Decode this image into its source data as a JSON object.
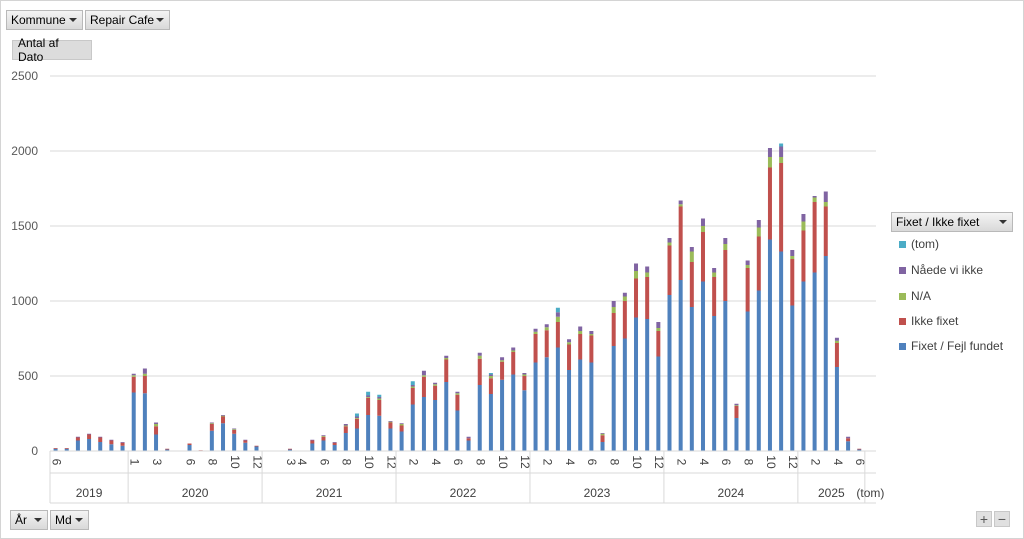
{
  "filters": {
    "kommune": "Kommune",
    "repair_cafe": "Repair Cafe"
  },
  "value_field": "Antal af Dato",
  "legend_field": "Fixet / Ikke fixet",
  "axis_fields": {
    "year": "År",
    "month": "Md"
  },
  "zoom": {
    "plus": "+",
    "minus": "−"
  },
  "colors": {
    "Fixet / Fejl fundet": "#4f81bd",
    "Ikke fixet": "#c0504d",
    "N/A": "#9bbb59",
    "Nåede vi ikke": "#8064a2",
    "(tom)": "#4bacc6"
  },
  "chart_data": {
    "type": "bar",
    "stacked": true,
    "ylim": [
      0,
      2500
    ],
    "yticks": [
      "0",
      "500",
      "1000",
      "1500",
      "2000",
      "2500"
    ],
    "grid": true,
    "legend_position": "right",
    "series_order": [
      "Fixet / Fejl fundet",
      "Ikke fixet",
      "N/A",
      "Nåede vi ikke",
      "(tom)"
    ],
    "legend_order": [
      "(tom)",
      "Nåede vi ikke",
      "N/A",
      "Ikke fixet",
      "Fixet / Fejl fundet"
    ],
    "years": [
      {
        "label": "2019",
        "months": [
          6,
          7,
          8,
          9,
          10,
          11,
          12
        ],
        "values": [
          [
            15,
            5,
            0,
            0,
            0
          ],
          [
            15,
            5,
            0,
            0,
            0
          ],
          [
            70,
            20,
            0,
            5,
            0
          ],
          [
            80,
            30,
            0,
            5,
            0
          ],
          [
            60,
            30,
            0,
            5,
            0
          ],
          [
            45,
            25,
            0,
            5,
            0
          ],
          [
            35,
            20,
            0,
            5,
            0
          ]
        ]
      },
      {
        "label": "2020",
        "months": [
          1,
          2,
          3,
          4,
          5,
          6,
          7,
          8,
          9,
          10,
          11,
          12
        ],
        "values": [
          [
            390,
            105,
            10,
            10,
            0
          ],
          [
            385,
            115,
            15,
            35,
            0
          ],
          [
            110,
            55,
            15,
            10,
            0
          ],
          [
            10,
            5,
            0,
            0,
            0
          ],
          [
            0,
            0,
            0,
            0,
            0
          ],
          [
            40,
            10,
            0,
            0,
            0
          ],
          [
            0,
            5,
            0,
            0,
            0
          ],
          [
            135,
            45,
            5,
            5,
            0
          ],
          [
            185,
            45,
            5,
            5,
            0
          ],
          [
            115,
            25,
            5,
            5,
            0
          ],
          [
            55,
            15,
            0,
            5,
            0
          ],
          [
            30,
            5,
            0,
            0,
            0
          ]
        ]
      },
      {
        "label": "2021",
        "months": [
          1,
          2,
          3,
          4,
          5,
          6,
          7,
          8,
          9,
          10,
          11,
          12
        ],
        "values": [
          [
            0,
            0,
            0,
            0,
            0
          ],
          [
            0,
            0,
            0,
            0,
            0
          ],
          [
            10,
            5,
            0,
            0,
            0
          ],
          [
            0,
            0,
            0,
            0,
            0
          ],
          [
            50,
            20,
            0,
            5,
            0
          ],
          [
            70,
            25,
            5,
            5,
            0
          ],
          [
            40,
            15,
            0,
            5,
            0
          ],
          [
            120,
            45,
            5,
            10,
            0
          ],
          [
            150,
            65,
            5,
            10,
            20
          ],
          [
            240,
            115,
            5,
            10,
            25
          ],
          [
            235,
            105,
            10,
            10,
            15
          ],
          [
            150,
            40,
            5,
            5,
            0
          ]
        ]
      },
      {
        "label": "2022",
        "months": [
          1,
          2,
          3,
          4,
          5,
          6,
          7,
          8,
          9,
          10,
          11,
          12
        ],
        "values": [
          [
            130,
            40,
            10,
            5,
            0
          ],
          [
            310,
            110,
            10,
            10,
            25
          ],
          [
            360,
            135,
            10,
            30,
            0
          ],
          [
            340,
            95,
            10,
            10,
            0
          ],
          [
            460,
            150,
            10,
            15,
            0
          ],
          [
            270,
            105,
            10,
            10,
            0
          ],
          [
            70,
            15,
            0,
            10,
            0
          ],
          [
            440,
            175,
            20,
            20,
            0
          ],
          [
            380,
            105,
            15,
            10,
            10
          ],
          [
            475,
            120,
            10,
            20,
            0
          ],
          [
            510,
            150,
            10,
            20,
            0
          ],
          [
            405,
            95,
            10,
            10,
            0
          ]
        ]
      },
      {
        "label": "2023",
        "months": [
          1,
          2,
          3,
          4,
          5,
          6,
          7,
          8,
          9,
          10,
          11,
          12
        ],
        "values": [
          [
            590,
            190,
            15,
            20,
            0
          ],
          [
            625,
            180,
            20,
            20,
            0
          ],
          [
            690,
            170,
            35,
            30,
            30
          ],
          [
            540,
            170,
            15,
            20,
            0
          ],
          [
            610,
            170,
            20,
            30,
            0
          ],
          [
            590,
            180,
            10,
            20,
            0
          ],
          [
            60,
            45,
            10,
            5,
            0
          ],
          [
            700,
            220,
            40,
            40,
            0
          ],
          [
            750,
            250,
            30,
            25,
            0
          ],
          [
            890,
            260,
            50,
            50,
            0
          ],
          [
            880,
            280,
            30,
            40,
            0
          ],
          [
            630,
            170,
            20,
            40,
            0
          ]
        ]
      },
      {
        "label": "2024",
        "months": [
          1,
          2,
          3,
          4,
          5,
          6,
          7,
          8,
          9,
          10,
          11,
          12
        ],
        "values": [
          [
            1040,
            330,
            20,
            30,
            0
          ],
          [
            1140,
            490,
            15,
            25,
            0
          ],
          [
            960,
            300,
            70,
            30,
            0
          ],
          [
            1130,
            330,
            40,
            50,
            0
          ],
          [
            900,
            260,
            30,
            30,
            0
          ],
          [
            1000,
            340,
            40,
            40,
            0
          ],
          [
            220,
            80,
            5,
            10,
            0
          ],
          [
            930,
            290,
            20,
            30,
            0
          ],
          [
            1070,
            360,
            60,
            50,
            0
          ],
          [
            1410,
            480,
            70,
            60,
            0
          ],
          [
            1330,
            590,
            40,
            70,
            20
          ],
          [
            970,
            310,
            20,
            40,
            0
          ]
        ]
      },
      {
        "label": "2025",
        "months": [
          1,
          2,
          3,
          4,
          5,
          6
        ],
        "values": [
          [
            1130,
            340,
            60,
            50,
            0
          ],
          [
            1190,
            470,
            30,
            10,
            0
          ],
          [
            1300,
            330,
            30,
            70,
            0
          ],
          [
            560,
            160,
            15,
            20,
            0
          ],
          [
            65,
            20,
            0,
            10,
            0
          ],
          [
            10,
            5,
            0,
            0,
            0
          ]
        ]
      },
      {
        "label": "(tom)",
        "months": [],
        "values": []
      }
    ]
  }
}
